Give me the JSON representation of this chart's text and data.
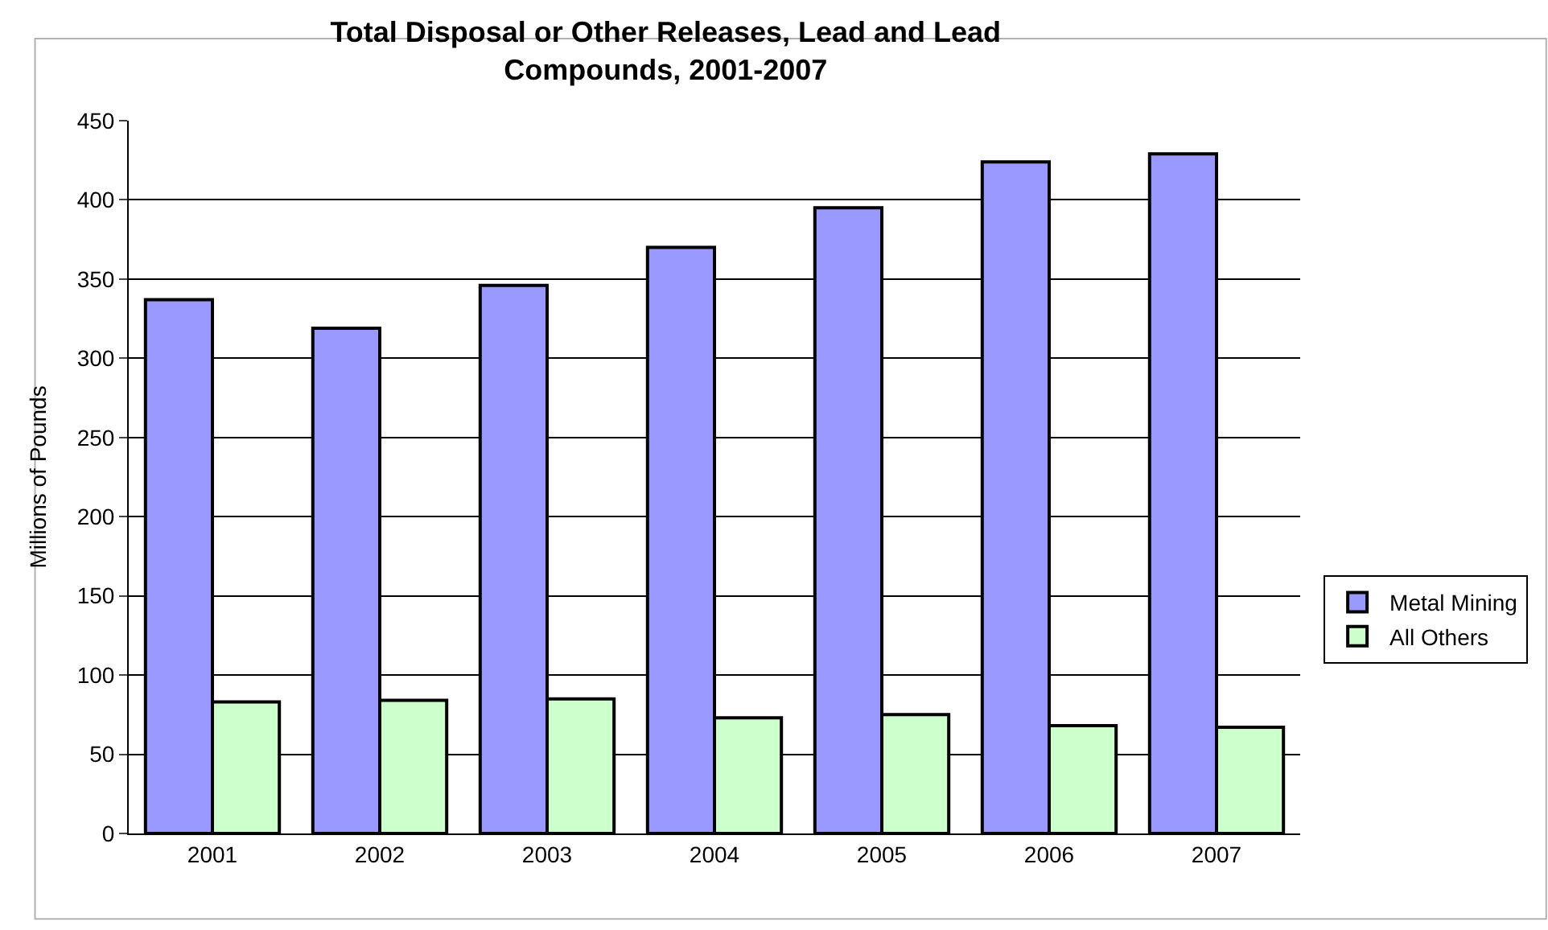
{
  "chart_data": {
    "type": "bar",
    "title": "Total Disposal or Other Releases, Lead and Lead\nCompounds, 2001-2007",
    "ylabel": "Millions of Pounds",
    "categories": [
      "2001",
      "2002",
      "2003",
      "2004",
      "2005",
      "2006",
      "2007"
    ],
    "series": [
      {
        "name": "Metal Mining",
        "color": "#9999ff",
        "values": [
          337,
          319,
          346,
          370,
          395,
          424,
          429
        ]
      },
      {
        "name": "All Others",
        "color": "#ccffcc",
        "values": [
          83,
          84,
          85,
          73,
          75,
          68,
          67
        ]
      }
    ],
    "ylim": [
      0,
      450
    ],
    "yticks": [
      0,
      50,
      100,
      150,
      200,
      250,
      300,
      350,
      400,
      450
    ],
    "grid": "y",
    "legend": "right"
  }
}
